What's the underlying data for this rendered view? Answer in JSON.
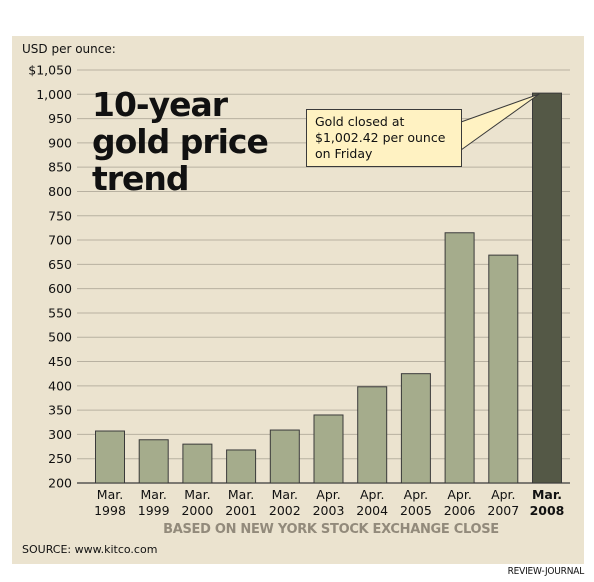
{
  "chart_data": {
    "type": "bar",
    "title": "10-year gold price trend",
    "title_lines": [
      "10-year",
      "gold price",
      "trend"
    ],
    "ylabel": "USD per ounce:",
    "xlabel": "BASED ON NEW YORK STOCK EXCHANGE CLOSE",
    "ylim": [
      200,
      1050
    ],
    "yticks": [
      200,
      250,
      300,
      350,
      400,
      450,
      500,
      550,
      600,
      650,
      700,
      750,
      800,
      850,
      900,
      950,
      1000,
      1050
    ],
    "ytick_labels": [
      "200",
      "250",
      "300",
      "350",
      "400",
      "450",
      "500",
      "550",
      "600",
      "650",
      "700",
      "750",
      "800",
      "850",
      "900",
      "950",
      "1,000",
      "$1,050"
    ],
    "grid": true,
    "categories": [
      {
        "month": "Mar.",
        "year": "1998"
      },
      {
        "month": "Mar.",
        "year": "1999"
      },
      {
        "month": "Mar.",
        "year": "2000"
      },
      {
        "month": "Mar.",
        "year": "2001"
      },
      {
        "month": "Mar.",
        "year": "2002"
      },
      {
        "month": "Apr.",
        "year": "2003"
      },
      {
        "month": "Apr.",
        "year": "2004"
      },
      {
        "month": "Apr.",
        "year": "2005"
      },
      {
        "month": "Apr.",
        "year": "2006"
      },
      {
        "month": "Apr.",
        "year": "2007"
      },
      {
        "month": "Mar.",
        "year": "2008"
      }
    ],
    "values": [
      307,
      289,
      280,
      268,
      309,
      340,
      398,
      425,
      715,
      669,
      1002.42
    ],
    "highlight_index": 10,
    "annotation": [
      "Gold closed at",
      "$1,002.42 per ounce",
      "on Friday"
    ],
    "colors": {
      "bar": "#a5ac8c",
      "highlight": "#545846",
      "background": "#ebe3cf",
      "grid": "#b8b1a1",
      "note_fill": "#fff2c2"
    }
  },
  "source": "SOURCE: www.kitco.com",
  "credit": "REVIEW-JOURNAL"
}
